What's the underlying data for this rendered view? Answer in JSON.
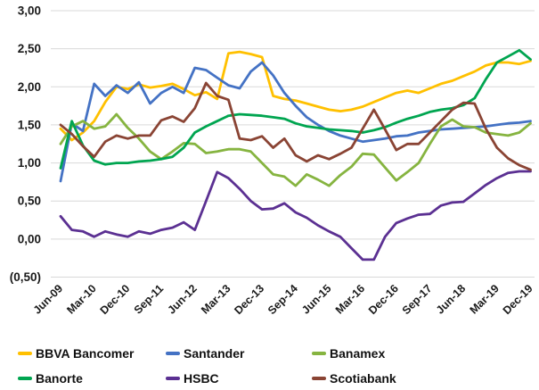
{
  "chart_data": {
    "type": "line",
    "title": "",
    "xlabel": "",
    "ylabel": "",
    "ylim": [
      -0.5,
      3.0
    ],
    "y_tick_step": 0.5,
    "y_tick_labels": [
      "3,00",
      "2,50",
      "2,00",
      "1,50",
      "1,00",
      "0,50",
      "0,00",
      "(0,50)"
    ],
    "grid": "horizontal",
    "grid_color": "#d9d9d9",
    "legend_position": "bottom",
    "x": [
      "Jun-09",
      "Sep-09",
      "Dec-09",
      "Mar-10",
      "Jun-10",
      "Sep-10",
      "Dec-10",
      "Mar-11",
      "Jun-11",
      "Sep-11",
      "Dec-11",
      "Mar-12",
      "Jun-12",
      "Sep-12",
      "Dec-12",
      "Mar-13",
      "Jun-13",
      "Sep-13",
      "Dec-13",
      "Mar-14",
      "Jun-14",
      "Sep-14",
      "Dec-14",
      "Mar-15",
      "Jun-15",
      "Sep-15",
      "Dec-15",
      "Mar-16",
      "Jun-16",
      "Sep-16",
      "Dec-16",
      "Mar-17",
      "Jun-17",
      "Sep-17",
      "Dec-17",
      "Mar-18",
      "Jun-18",
      "Sep-18",
      "Dec-18",
      "Mar-19",
      "Jun-19",
      "Sep-19",
      "Dec-19"
    ],
    "x_tick_labels": [
      "Jun-09",
      "Mar-10",
      "Dec-10",
      "Sep-11",
      "Jun-12",
      "Mar-13",
      "Dec-13",
      "Sep-14",
      "Jun-15",
      "Mar-16",
      "Dec-16",
      "Sep-17",
      "Jun-18",
      "Mar-19",
      "Dec-19"
    ],
    "x_tick_every": 3,
    "series": [
      {
        "name": "BBVA Bancomer",
        "color": "#FFC000",
        "values": [
          1.45,
          1.3,
          1.4,
          1.55,
          1.8,
          2.0,
          1.97,
          2.03,
          1.99,
          2.01,
          2.04,
          1.97,
          1.89,
          1.93,
          1.84,
          2.44,
          2.46,
          2.43,
          2.39,
          1.88,
          1.84,
          1.82,
          1.78,
          1.74,
          1.7,
          1.68,
          1.7,
          1.74,
          1.8,
          1.86,
          1.92,
          1.95,
          1.92,
          1.98,
          2.04,
          2.08,
          2.14,
          2.2,
          2.28,
          2.32,
          2.32,
          2.3,
          2.34
        ]
      },
      {
        "name": "Santander",
        "color": "#4472C4",
        "values": [
          0.76,
          1.52,
          1.42,
          2.04,
          1.88,
          2.02,
          1.92,
          2.06,
          1.78,
          1.92,
          2.0,
          1.92,
          2.25,
          2.22,
          2.12,
          2.02,
          1.98,
          2.2,
          2.32,
          2.15,
          1.92,
          1.75,
          1.6,
          1.5,
          1.42,
          1.36,
          1.32,
          1.28,
          1.3,
          1.32,
          1.35,
          1.36,
          1.4,
          1.42,
          1.44,
          1.45,
          1.46,
          1.47,
          1.48,
          1.5,
          1.52,
          1.53,
          1.55
        ]
      },
      {
        "name": "Banamex",
        "color": "#86B440",
        "values": [
          1.25,
          1.48,
          1.55,
          1.45,
          1.48,
          1.64,
          1.46,
          1.32,
          1.15,
          1.05,
          1.15,
          1.26,
          1.25,
          1.13,
          1.15,
          1.18,
          1.18,
          1.15,
          1.0,
          0.85,
          0.82,
          0.7,
          0.85,
          0.78,
          0.7,
          0.84,
          0.95,
          1.12,
          1.11,
          0.94,
          0.77,
          0.88,
          1.0,
          1.25,
          1.48,
          1.57,
          1.48,
          1.47,
          1.4,
          1.38,
          1.36,
          1.4,
          1.52
        ]
      },
      {
        "name": "Banorte",
        "color": "#00A550",
        "values": [
          0.93,
          1.55,
          1.23,
          1.03,
          0.98,
          1.0,
          1.0,
          1.02,
          1.03,
          1.05,
          1.08,
          1.2,
          1.4,
          1.48,
          1.55,
          1.62,
          1.64,
          1.63,
          1.62,
          1.6,
          1.58,
          1.52,
          1.48,
          1.46,
          1.44,
          1.43,
          1.42,
          1.4,
          1.43,
          1.47,
          1.53,
          1.58,
          1.62,
          1.67,
          1.7,
          1.72,
          1.76,
          1.85,
          2.1,
          2.32,
          2.4,
          2.48,
          2.36
        ]
      },
      {
        "name": "HSBC",
        "color": "#5B3092",
        "values": [
          0.3,
          0.12,
          0.1,
          0.03,
          0.1,
          0.06,
          0.03,
          0.1,
          0.07,
          0.12,
          0.15,
          0.22,
          0.12,
          0.5,
          0.88,
          0.8,
          0.66,
          0.5,
          0.39,
          0.4,
          0.47,
          0.35,
          0.28,
          0.18,
          0.1,
          0.03,
          -0.12,
          -0.27,
          -0.27,
          0.03,
          0.21,
          0.27,
          0.32,
          0.33,
          0.44,
          0.48,
          0.49,
          0.6,
          0.71,
          0.8,
          0.87,
          0.89,
          0.89
        ]
      },
      {
        "name": "Scotiabank",
        "color": "#8A4434",
        "values": [
          1.5,
          1.38,
          1.22,
          1.08,
          1.28,
          1.36,
          1.32,
          1.36,
          1.36,
          1.56,
          1.61,
          1.54,
          1.72,
          2.05,
          1.88,
          1.83,
          1.32,
          1.3,
          1.35,
          1.2,
          1.32,
          1.1,
          1.02,
          1.1,
          1.05,
          1.12,
          1.2,
          1.45,
          1.7,
          1.44,
          1.17,
          1.25,
          1.25,
          1.4,
          1.55,
          1.7,
          1.79,
          1.78,
          1.45,
          1.2,
          1.06,
          0.97,
          0.91
        ]
      }
    ]
  },
  "legend": {
    "items": [
      {
        "label": "BBVA Bancomer"
      },
      {
        "label": "Santander"
      },
      {
        "label": "Banamex"
      },
      {
        "label": "Banorte"
      },
      {
        "label": "HSBC"
      },
      {
        "label": "Scotiabank"
      }
    ]
  }
}
